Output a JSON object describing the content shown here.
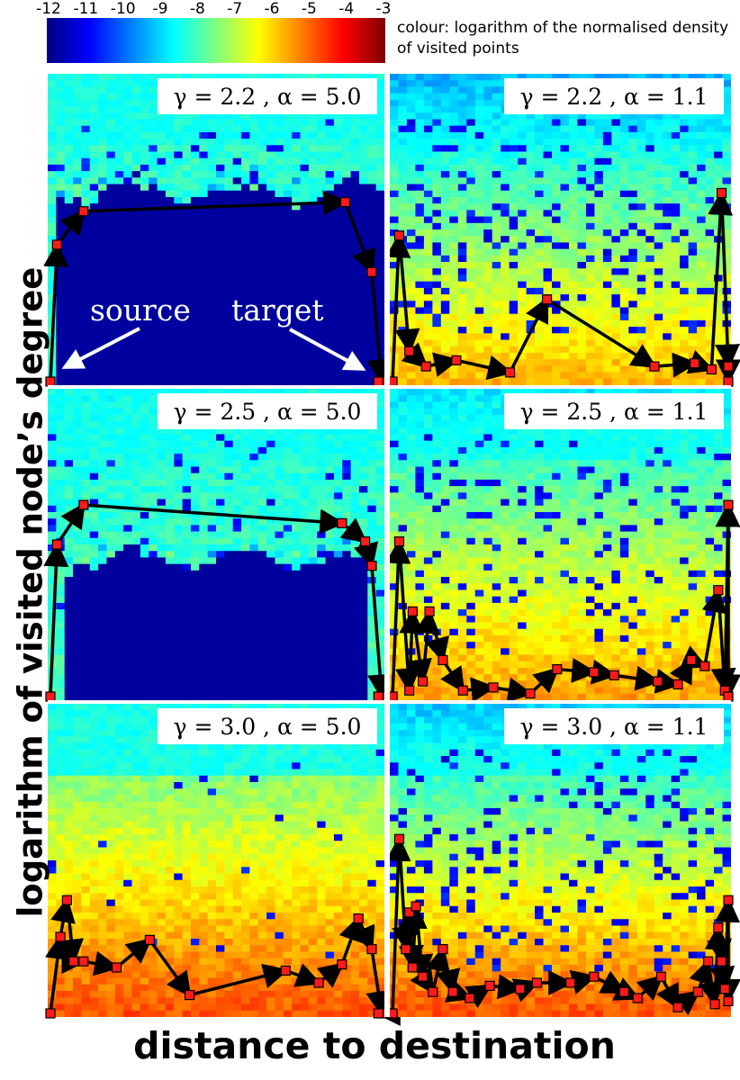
{
  "figure": {
    "ylabel": "logarithm of visited node’s degree",
    "xlabel": "distance to destination",
    "colorbar_label": "colour: logarithm of the normalised density of visited points"
  },
  "colorbar": {
    "min": -12,
    "max": -3,
    "ticks": [
      "-12",
      "-11",
      "-10",
      "-9",
      "-8",
      "-7",
      "-6",
      "-5",
      "-4",
      "-3"
    ],
    "colors": [
      "#00007f",
      "#0000ff",
      "#0080ff",
      "#00ffff",
      "#80ff80",
      "#ffff00",
      "#ff8000",
      "#ff0000",
      "#7f0000"
    ]
  },
  "annotations": {
    "source": "source",
    "target": "target"
  },
  "chart_data": [
    {
      "type": "heatmap",
      "panel": "γ = 2.2 , α = 5.0",
      "gamma": 2.2,
      "alpha": 5.0,
      "path": [
        [
          0.0,
          0.0
        ],
        [
          0.02,
          0.45
        ],
        [
          0.1,
          0.56
        ],
        [
          0.89,
          0.59
        ],
        [
          0.97,
          0.36
        ],
        [
          1.0,
          0.0
        ],
        [
          0.99,
          0.0
        ]
      ]
    },
    {
      "type": "heatmap",
      "panel": "γ = 2.2 , α = 1.1",
      "gamma": 2.2,
      "alpha": 1.1,
      "path": [
        [
          0.0,
          0.0
        ],
        [
          0.02,
          0.48
        ],
        [
          0.05,
          0.1
        ],
        [
          0.1,
          0.05
        ],
        [
          0.19,
          0.07
        ],
        [
          0.35,
          0.03
        ],
        [
          0.46,
          0.27
        ],
        [
          0.78,
          0.05
        ],
        [
          0.9,
          0.06
        ],
        [
          0.95,
          0.04
        ],
        [
          0.98,
          0.62
        ],
        [
          1.0,
          0.05
        ],
        [
          1.0,
          0.0
        ]
      ]
    },
    {
      "type": "heatmap",
      "panel": "γ = 2.5 , α = 5.0",
      "gamma": 2.5,
      "alpha": 5.0,
      "path": [
        [
          0.0,
          0.0
        ],
        [
          0.02,
          0.5
        ],
        [
          0.1,
          0.63
        ],
        [
          0.88,
          0.57
        ],
        [
          0.95,
          0.51
        ],
        [
          0.97,
          0.43
        ],
        [
          1.0,
          0.0
        ],
        [
          0.99,
          0.0
        ]
      ]
    },
    {
      "type": "heatmap",
      "panel": "γ = 2.5 , α = 1.1",
      "gamma": 2.5,
      "alpha": 1.1,
      "path": [
        [
          0.0,
          0.0
        ],
        [
          0.02,
          0.51
        ],
        [
          0.05,
          0.02
        ],
        [
          0.06,
          0.28
        ],
        [
          0.09,
          0.05
        ],
        [
          0.11,
          0.28
        ],
        [
          0.15,
          0.12
        ],
        [
          0.21,
          0.02
        ],
        [
          0.3,
          0.03
        ],
        [
          0.41,
          0.01
        ],
        [
          0.49,
          0.09
        ],
        [
          0.6,
          0.08
        ],
        [
          0.66,
          0.07
        ],
        [
          0.79,
          0.05
        ],
        [
          0.85,
          0.04
        ],
        [
          0.89,
          0.12
        ],
        [
          0.93,
          0.1
        ],
        [
          0.97,
          0.35
        ],
        [
          0.99,
          0.02
        ],
        [
          1.0,
          0.63
        ],
        [
          1.0,
          0.0
        ]
      ]
    },
    {
      "type": "heatmap",
      "panel": "γ = 3.0 , α = 5.0",
      "gamma": 3.0,
      "alpha": 5.0,
      "path": [
        [
          0.0,
          0.0
        ],
        [
          0.03,
          0.25
        ],
        [
          0.05,
          0.37
        ],
        [
          0.07,
          0.17
        ],
        [
          0.1,
          0.17
        ],
        [
          0.2,
          0.15
        ],
        [
          0.3,
          0.24
        ],
        [
          0.42,
          0.06
        ],
        [
          0.71,
          0.14
        ],
        [
          0.81,
          0.1
        ],
        [
          0.88,
          0.16
        ],
        [
          0.93,
          0.31
        ],
        [
          0.97,
          0.21
        ],
        [
          1.0,
          0.0
        ],
        [
          0.99,
          0.0
        ]
      ]
    },
    {
      "type": "heatmap",
      "panel": "γ = 3.0 , α = 1.1",
      "gamma": 3.0,
      "alpha": 1.1,
      "path": [
        [
          0.0,
          0.0
        ],
        [
          0.02,
          0.57
        ],
        [
          0.04,
          0.21
        ],
        [
          0.05,
          0.33
        ],
        [
          0.06,
          0.15
        ],
        [
          0.07,
          0.35
        ],
        [
          0.09,
          0.12
        ],
        [
          0.12,
          0.07
        ],
        [
          0.15,
          0.21
        ],
        [
          0.18,
          0.07
        ],
        [
          0.23,
          0.05
        ],
        [
          0.29,
          0.09
        ],
        [
          0.38,
          0.08
        ],
        [
          0.43,
          0.1
        ],
        [
          0.53,
          0.1
        ],
        [
          0.6,
          0.12
        ],
        [
          0.69,
          0.07
        ],
        [
          0.73,
          0.05
        ],
        [
          0.8,
          0.12
        ],
        [
          0.85,
          0.02
        ],
        [
          0.91,
          0.07
        ],
        [
          0.94,
          0.17
        ],
        [
          0.96,
          0.03
        ],
        [
          0.97,
          0.28
        ],
        [
          0.98,
          0.17
        ],
        [
          0.99,
          0.08
        ],
        [
          1.0,
          0.37
        ],
        [
          1.0,
          0.04
        ]
      ]
    }
  ]
}
